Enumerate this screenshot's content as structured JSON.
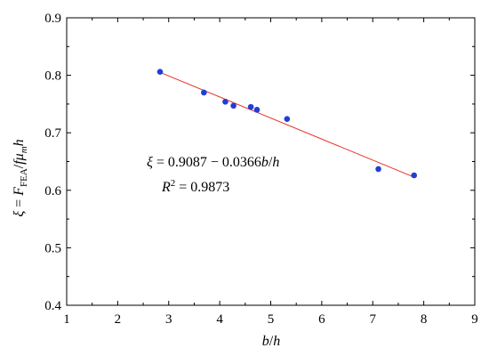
{
  "chart_data": {
    "type": "scatter",
    "title": "",
    "xlabel": "b/h",
    "ylabel": "ξ = F_FEA/fμ_m h",
    "xlim": [
      1,
      9
    ],
    "ylim": [
      0.4,
      0.9
    ],
    "x_ticks": [
      1,
      2,
      3,
      4,
      5,
      6,
      7,
      8,
      9
    ],
    "y_ticks": [
      0.4,
      0.5,
      0.6,
      0.7,
      0.8,
      0.9
    ],
    "x_tick_labels": [
      "1",
      "2",
      "3",
      "4",
      "5",
      "6",
      "7",
      "8",
      "9"
    ],
    "y_tick_labels": [
      "0.4",
      "0.5",
      "0.6",
      "0.7",
      "0.8",
      "0.9"
    ],
    "grid": false,
    "legend": "none",
    "points": [
      {
        "x": 2.83,
        "y": 0.806
      },
      {
        "x": 3.69,
        "y": 0.77
      },
      {
        "x": 4.11,
        "y": 0.754
      },
      {
        "x": 4.27,
        "y": 0.747
      },
      {
        "x": 4.61,
        "y": 0.745
      },
      {
        "x": 4.73,
        "y": 0.74
      },
      {
        "x": 5.32,
        "y": 0.724
      },
      {
        "x": 7.11,
        "y": 0.637
      },
      {
        "x": 7.81,
        "y": 0.626
      }
    ],
    "fit": {
      "intercept": 0.9087,
      "slope": -0.0366,
      "x_range": [
        2.83,
        7.81
      ]
    },
    "annotation": {
      "equation": "ξ = 0.9087 − 0.0366b/h",
      "r_squared": "R² = 0.9873"
    },
    "colors": {
      "points": "#1f3fd6",
      "fit_line": "#e8302a",
      "axes": "#000000"
    }
  }
}
